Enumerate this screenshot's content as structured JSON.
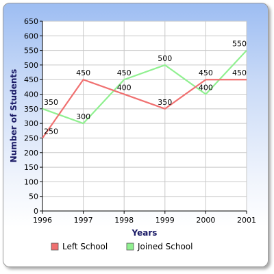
{
  "chart_data": {
    "type": "line",
    "title": "",
    "xlabel": "Years",
    "ylabel": "Number of Students",
    "categories": [
      "1996",
      "1997",
      "1998",
      "1999",
      "2000",
      "2001"
    ],
    "ylim": [
      0,
      650
    ],
    "yticks": [
      0,
      50,
      100,
      150,
      200,
      250,
      300,
      350,
      400,
      450,
      500,
      550,
      600,
      650
    ],
    "grid": true,
    "legend_position": "bottom",
    "series": [
      {
        "name": "Left School",
        "color": "#f07070",
        "values": [
          250,
          450,
          400,
          350,
          450,
          450
        ],
        "labels": [
          "250",
          "450",
          "400",
          "350",
          "450",
          "450"
        ]
      },
      {
        "name": "Joined School",
        "color": "#90f090",
        "values": [
          350,
          300,
          450,
          500,
          400,
          550
        ],
        "labels": [
          "350",
          "300",
          "450",
          "500",
          "400",
          "550"
        ]
      }
    ]
  }
}
